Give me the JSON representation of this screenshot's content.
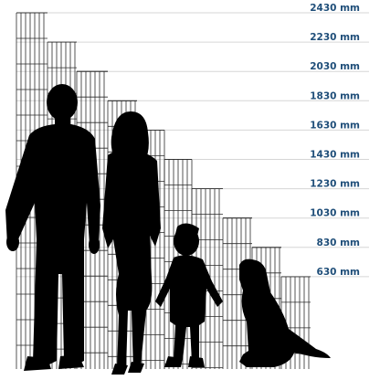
{
  "colors": {
    "label": "#1f4e79",
    "guide": "#d6d6d6",
    "mesh": "#2a2a2a",
    "silhouette": "#000000",
    "background": "#ffffff"
  },
  "heights": [
    {
      "label": "2430 mm",
      "mm": 2430
    },
    {
      "label": "2230 mm",
      "mm": 2230
    },
    {
      "label": "2030 mm",
      "mm": 2030
    },
    {
      "label": "1830 mm",
      "mm": 1830
    },
    {
      "label": "1630 mm",
      "mm": 1630
    },
    {
      "label": "1430 mm",
      "mm": 1430
    },
    {
      "label": "1230 mm",
      "mm": 1230
    },
    {
      "label": "1030 mm",
      "mm": 1030
    },
    {
      "label": "830 mm",
      "mm": 830
    },
    {
      "label": "630 mm",
      "mm": 630
    }
  ],
  "silhouettes": [
    "man",
    "woman",
    "child",
    "dog"
  ]
}
